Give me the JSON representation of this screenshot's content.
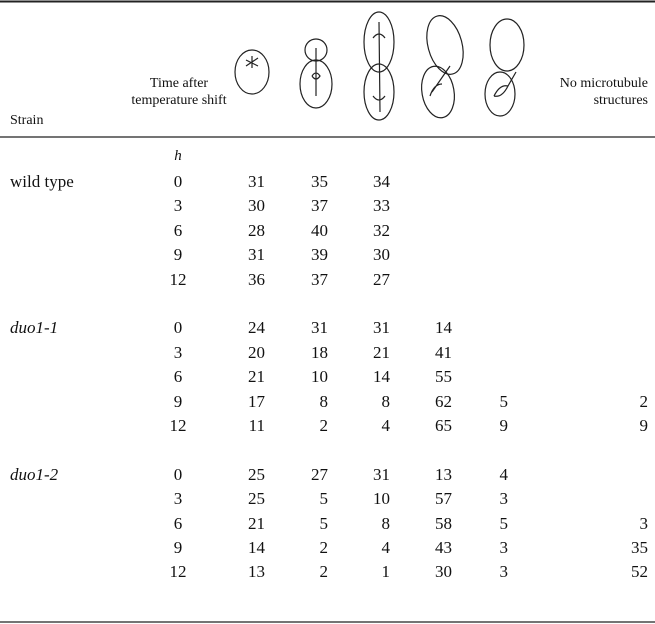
{
  "header": {
    "strain": "Strain",
    "time": "Time after temperature shift",
    "no_microtubule": "No microtubule structures",
    "unit": "h"
  },
  "table": {
    "groups": [
      {
        "name": "wild type",
        "rows": [
          [
            0,
            31,
            35,
            34,
            null,
            null,
            null
          ],
          [
            3,
            30,
            37,
            33,
            null,
            null,
            null
          ],
          [
            6,
            28,
            40,
            32,
            null,
            null,
            null
          ],
          [
            9,
            31,
            39,
            30,
            null,
            null,
            null
          ],
          [
            12,
            36,
            37,
            27,
            null,
            null,
            null
          ]
        ]
      },
      {
        "name": "duo1-1",
        "rows": [
          [
            0,
            24,
            31,
            31,
            14,
            null,
            null
          ],
          [
            3,
            20,
            18,
            21,
            41,
            null,
            null
          ],
          [
            6,
            21,
            10,
            14,
            55,
            null,
            null
          ],
          [
            9,
            17,
            8,
            8,
            62,
            5,
            2
          ],
          [
            12,
            11,
            2,
            4,
            65,
            9,
            9
          ]
        ]
      },
      {
        "name": "duo1-2",
        "rows": [
          [
            0,
            25,
            27,
            31,
            13,
            4,
            null
          ],
          [
            3,
            25,
            5,
            10,
            57,
            3,
            null
          ],
          [
            6,
            21,
            5,
            8,
            58,
            5,
            3
          ],
          [
            9,
            14,
            2,
            4,
            43,
            3,
            35
          ],
          [
            12,
            13,
            2,
            1,
            30,
            3,
            52
          ]
        ]
      }
    ]
  }
}
